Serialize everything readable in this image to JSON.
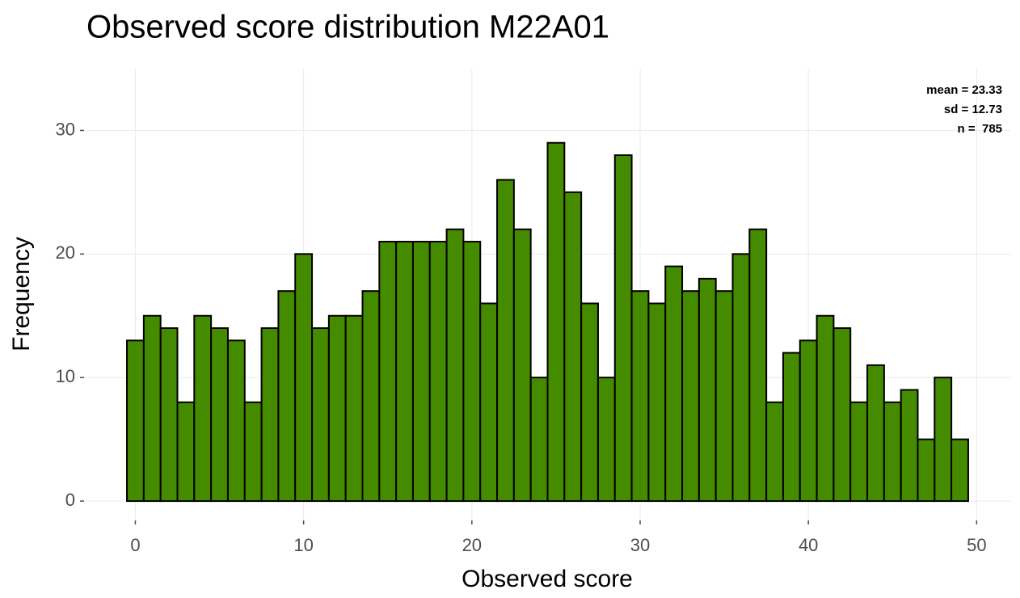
{
  "chart_data": {
    "type": "histogram",
    "title": "Observed score distribution M22A01",
    "x_label": "Observed score",
    "y_label": "Frequency",
    "annotations": [
      "mean = 23.33",
      "sd = 12.73",
      "n =  785"
    ],
    "bins": [
      -0.5,
      0.5,
      1.5,
      2.5,
      3.5,
      4.5,
      5.5,
      6.5,
      7.5,
      8.5,
      9.5,
      10.5,
      11.5,
      12.5,
      13.5,
      14.5,
      15.5,
      16.5,
      17.5,
      18.5,
      19.5,
      20.5,
      21.5,
      22.5,
      23.5,
      24.5,
      25.5,
      26.5,
      27.5,
      28.5,
      29.5,
      30.5,
      31.5,
      32.5,
      33.5,
      34.5,
      35.5,
      36.5,
      37.5,
      38.5,
      39.5,
      40.5,
      41.5,
      42.5,
      43.5,
      44.5,
      45.5,
      46.5,
      47.5,
      48.5,
      49.5
    ],
    "values": [
      13,
      15,
      14,
      8,
      15,
      14,
      13,
      8,
      14,
      17,
      20,
      14,
      15,
      15,
      17,
      21,
      21,
      21,
      21,
      22,
      21,
      16,
      26,
      22,
      10,
      29,
      25,
      16,
      10,
      28,
      17,
      16,
      19,
      17,
      18,
      17,
      20,
      22,
      8,
      12,
      13,
      15,
      14,
      8,
      11,
      8,
      9,
      5,
      10,
      5
    ],
    "color": "#458b00",
    "edgecolor": "#000000",
    "xlim": [
      -3,
      52
    ],
    "ylim": [
      -1.5,
      35
    ],
    "xticks": [
      0,
      10,
      20,
      30,
      40,
      50
    ],
    "yticks": [
      0,
      10,
      20,
      30
    ],
    "grid": true
  }
}
